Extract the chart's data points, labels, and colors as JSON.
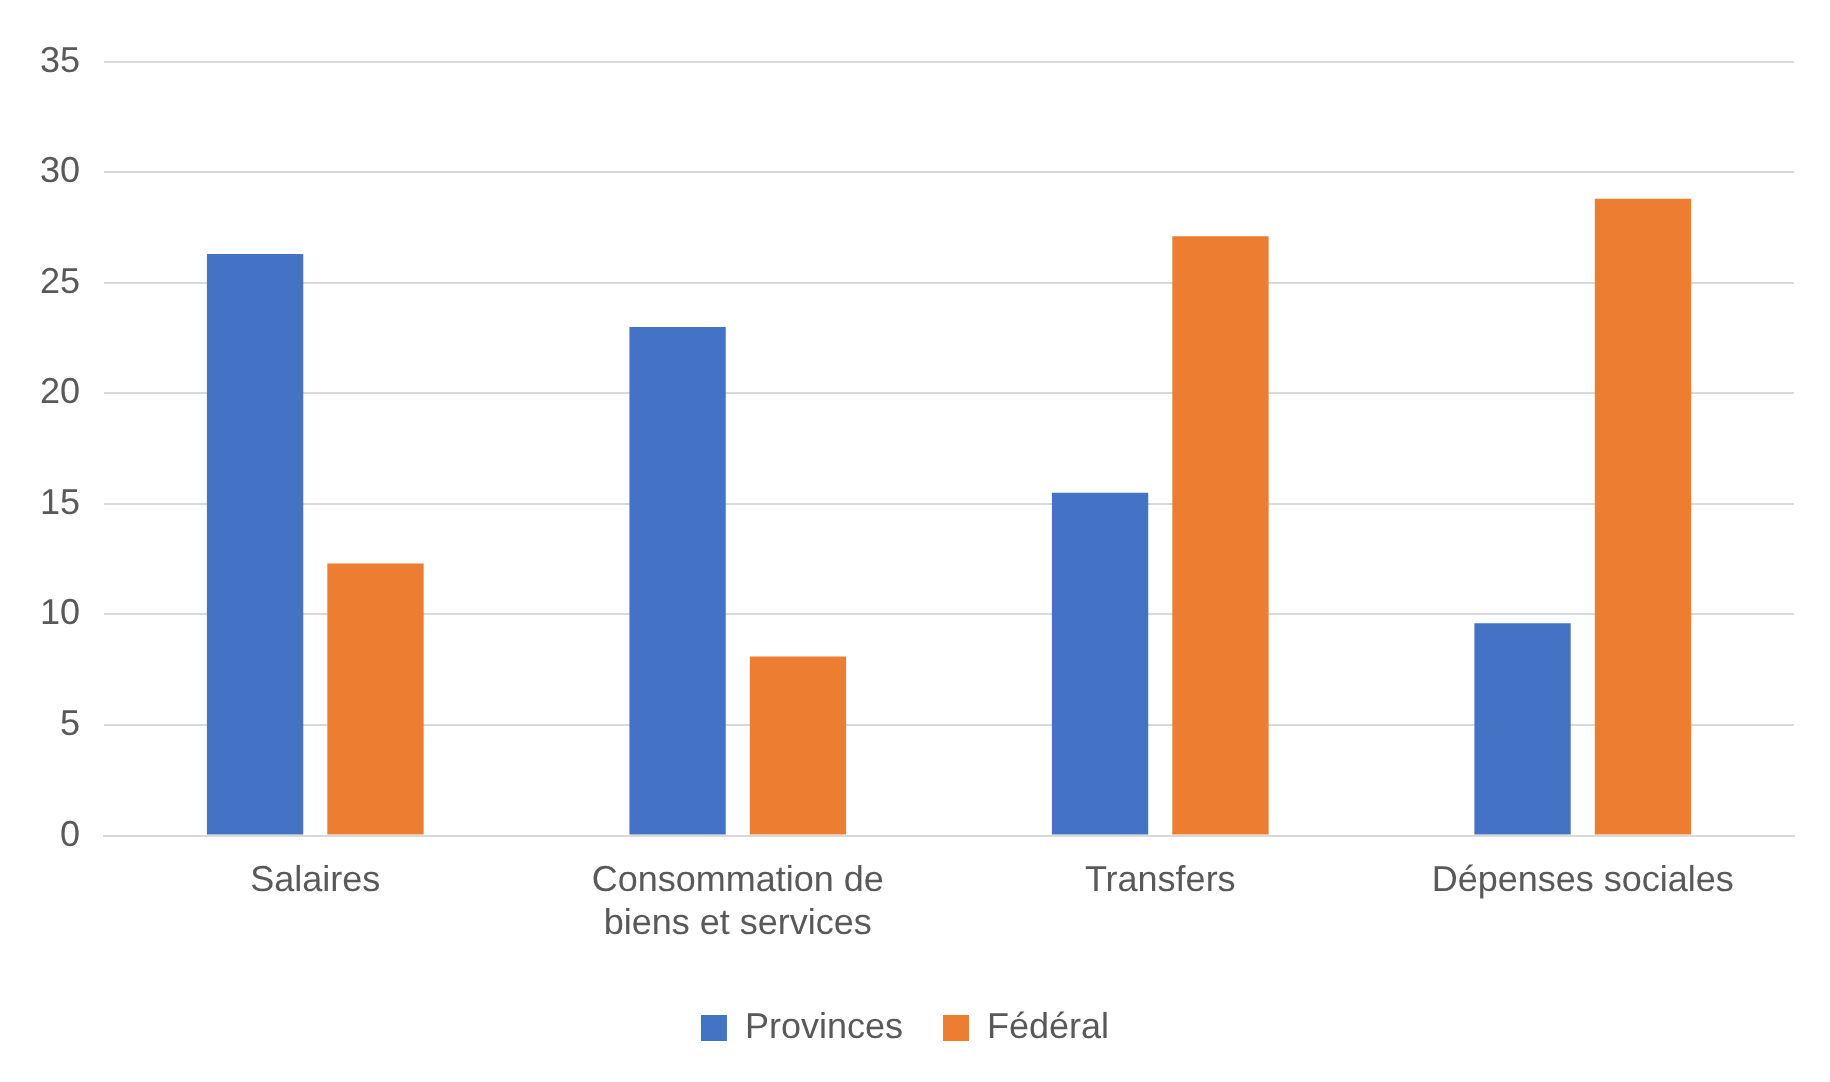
{
  "chart_data": {
    "type": "bar",
    "categories": [
      "Salaires",
      "Consommation de biens et services",
      "Transfers",
      "Dépenses sociales"
    ],
    "series": [
      {
        "name": "Provinces",
        "color": "#4472c4",
        "values": [
          26.3,
          23.0,
          15.5,
          9.6
        ]
      },
      {
        "name": "Fédéral",
        "color": "#ed7d31",
        "values": [
          12.3,
          8.1,
          27.1,
          28.8
        ]
      }
    ],
    "ylim": [
      0,
      35
    ],
    "yticks": [
      0,
      5,
      10,
      15,
      20,
      25,
      30,
      35
    ],
    "grid": "y",
    "legend": "bottom"
  }
}
